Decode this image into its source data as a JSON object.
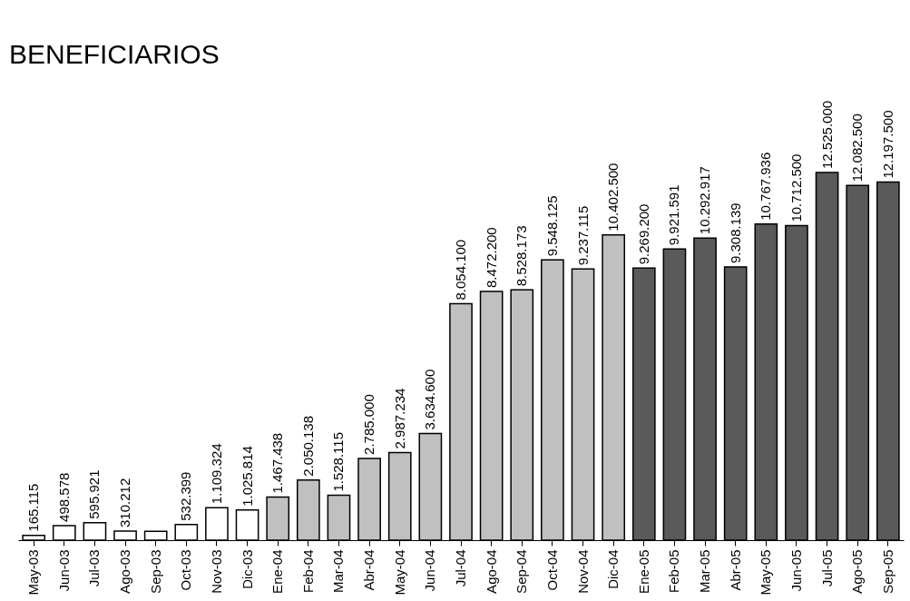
{
  "chart_data": {
    "type": "bar",
    "title": "BENEFICIARIOS",
    "categories": [
      "May-03",
      "Jun-03",
      "Jul-03",
      "Ago-03",
      "Sep-03",
      "Oct-03",
      "Nov-03",
      "Dic-03",
      "Ene-04",
      "Feb-04",
      "Mar-04",
      "Abr-04",
      "May-04",
      "Jun-04",
      "Jul-04",
      "Ago-04",
      "Sep-04",
      "Oct-04",
      "Nov-04",
      "Dic-04",
      "Ene-05",
      "Feb-05",
      "Mar-05",
      "Abr-05",
      "May-05",
      "Jun-05",
      "Jul-05",
      "Ago-05",
      "Sep-05"
    ],
    "values": [
      165115,
      498578,
      595921,
      310212,
      300000,
      532399,
      1109324,
      1025814,
      1467438,
      2050138,
      1528115,
      2785000,
      2987234,
      3634600,
      8054100,
      8472200,
      8528173,
      9548125,
      9237115,
      10402500,
      9269200,
      9921591,
      10292917,
      9308139,
      10767936,
      10712500,
      12525000,
      12082500,
      12197500
    ],
    "value_labels": [
      "165.115",
      "498.578",
      "595.921",
      "310.212",
      null,
      "532.399",
      "1.109.324",
      "1.025.814",
      "1.467.438",
      "2.050.138",
      "1.528.115",
      "2.785.000",
      "2.987.234",
      "3.634.600",
      "8.054.100",
      "8.472.200",
      "8.528.173",
      "9.548.125",
      "9.237.115",
      "10.402.500",
      "9.269.200",
      "9.921.591",
      "10.292.917",
      "9.308.139",
      "10.767.936",
      "10.712.500",
      "12.525.000",
      "12.082.500",
      "12.197.500"
    ],
    "colors": [
      "#ffffff",
      "#ffffff",
      "#ffffff",
      "#ffffff",
      "#ffffff",
      "#ffffff",
      "#ffffff",
      "#ffffff",
      "#c0c0c0",
      "#c0c0c0",
      "#c0c0c0",
      "#c0c0c0",
      "#c0c0c0",
      "#c0c0c0",
      "#c0c0c0",
      "#c0c0c0",
      "#c0c0c0",
      "#c0c0c0",
      "#c0c0c0",
      "#c0c0c0",
      "#5a5a5a",
      "#5a5a5a",
      "#5a5a5a",
      "#5a5a5a",
      "#5a5a5a",
      "#5a5a5a",
      "#5a5a5a",
      "#5a5a5a",
      "#5a5a5a"
    ],
    "grid": false
  }
}
